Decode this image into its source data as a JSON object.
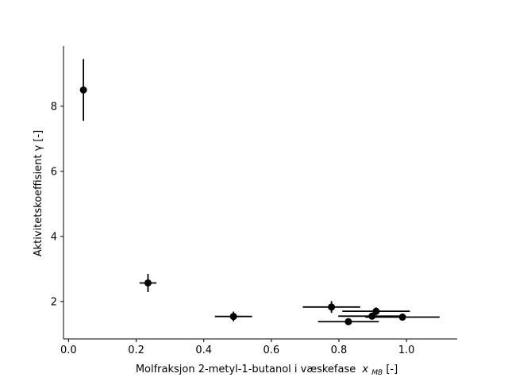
{
  "chart_data": {
    "type": "scatter",
    "title": "",
    "xlabel": "Molfraksjon 2-metyl-1-butanol i væskefase",
    "xlabel_var": "x",
    "xlabel_sub": "MB",
    "xlabel_unit": " [-]",
    "ylabel": "Aktivitetskoeffisient γ [-]",
    "xlim": [
      -0.015,
      1.15
    ],
    "ylim": [
      0.85,
      9.85
    ],
    "xticks": [
      0.0,
      0.2,
      0.4,
      0.6,
      0.8,
      1.0
    ],
    "xtick_labels": [
      "0.0",
      "0.2",
      "0.4",
      "0.6",
      "0.8",
      "1.0"
    ],
    "yticks": [
      2,
      4,
      6,
      8
    ],
    "ytick_labels": [
      "2",
      "4",
      "6",
      "8"
    ],
    "grid": false,
    "marker_color": "#000000",
    "points": [
      {
        "x": 0.044,
        "y": 8.5,
        "xerr": 0.0,
        "yerr": 0.95
      },
      {
        "x": 0.235,
        "y": 2.57,
        "xerr": 0.025,
        "yerr": 0.28
      },
      {
        "x": 0.488,
        "y": 1.54,
        "xerr": 0.055,
        "yerr": 0.15
      },
      {
        "x": 0.778,
        "y": 1.83,
        "xerr": 0.085,
        "yerr": 0.18
      },
      {
        "x": 0.828,
        "y": 1.38,
        "xerr": 0.09,
        "yerr": 0.08
      },
      {
        "x": 0.898,
        "y": 1.55,
        "xerr": 0.1,
        "yerr": 0.1
      },
      {
        "x": 0.91,
        "y": 1.7,
        "xerr": 0.1,
        "yerr": 0.12
      },
      {
        "x": 0.988,
        "y": 1.52,
        "xerr": 0.11,
        "yerr": 0.08
      }
    ]
  }
}
